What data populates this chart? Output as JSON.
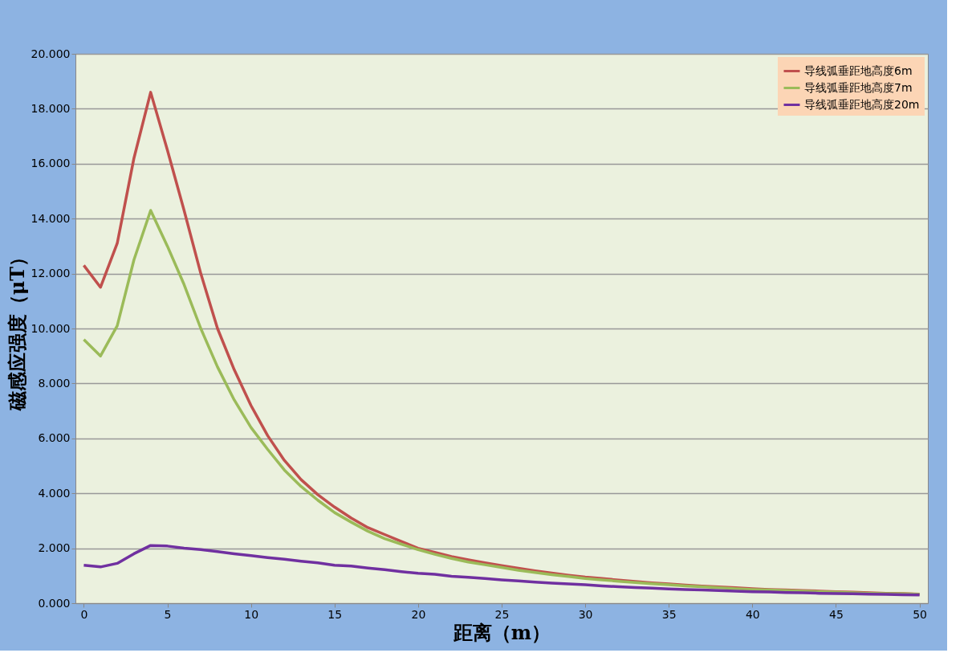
{
  "chart_data": {
    "type": "line",
    "xlabel": "距离（m）",
    "ylabel": "磁感应强度（μT）",
    "x": [
      0,
      1,
      2,
      3,
      4,
      5,
      6,
      7,
      8,
      9,
      10,
      11,
      12,
      13,
      14,
      15,
      16,
      17,
      18,
      19,
      20,
      21,
      22,
      23,
      24,
      25,
      26,
      27,
      28,
      29,
      30,
      31,
      32,
      33,
      34,
      35,
      36,
      37,
      38,
      39,
      40,
      41,
      42,
      43,
      44,
      45,
      46,
      47,
      48,
      49,
      50
    ],
    "series": [
      {
        "name": "导线弧垂距地高度6m",
        "color": "#c0504d",
        "values": [
          12.3,
          11.5,
          13.1,
          16.2,
          18.6,
          16.5,
          14.3,
          12.0,
          10.0,
          8.5,
          7.2,
          6.1,
          5.2,
          4.5,
          3.95,
          3.5,
          3.1,
          2.75,
          2.5,
          2.25,
          2.0,
          1.85,
          1.7,
          1.58,
          1.47,
          1.37,
          1.27,
          1.18,
          1.1,
          1.02,
          0.95,
          0.9,
          0.84,
          0.79,
          0.74,
          0.7,
          0.66,
          0.62,
          0.59,
          0.56,
          0.53,
          0.5,
          0.48,
          0.46,
          0.44,
          0.42,
          0.4,
          0.38,
          0.36,
          0.35,
          0.33
        ]
      },
      {
        "name": "导线弧垂距地高度7m",
        "color": "#9bbb59",
        "values": [
          9.6,
          9.0,
          10.1,
          12.5,
          14.3,
          13.0,
          11.6,
          10.0,
          8.6,
          7.4,
          6.4,
          5.6,
          4.85,
          4.25,
          3.75,
          3.3,
          2.95,
          2.62,
          2.35,
          2.15,
          1.95,
          1.78,
          1.63,
          1.5,
          1.4,
          1.3,
          1.2,
          1.12,
          1.04,
          0.97,
          0.9,
          0.85,
          0.8,
          0.75,
          0.71,
          0.67,
          0.63,
          0.6,
          0.56,
          0.53,
          0.5,
          0.48,
          0.46,
          0.44,
          0.42,
          0.4,
          0.38,
          0.36,
          0.35,
          0.34,
          0.32
        ]
      },
      {
        "name": "导线弧垂距地高度20m",
        "color": "#7030a0",
        "values": [
          1.38,
          1.32,
          1.45,
          1.8,
          2.1,
          2.08,
          2.0,
          1.95,
          1.88,
          1.8,
          1.73,
          1.66,
          1.6,
          1.53,
          1.47,
          1.38,
          1.35,
          1.28,
          1.22,
          1.15,
          1.09,
          1.05,
          0.98,
          0.94,
          0.9,
          0.85,
          0.81,
          0.77,
          0.73,
          0.7,
          0.67,
          0.63,
          0.6,
          0.57,
          0.55,
          0.52,
          0.5,
          0.48,
          0.46,
          0.44,
          0.42,
          0.41,
          0.39,
          0.38,
          0.36,
          0.35,
          0.34,
          0.33,
          0.32,
          0.31,
          0.3
        ]
      }
    ],
    "xlim": [
      -0.5,
      50.5
    ],
    "xticks": [
      0,
      5,
      10,
      15,
      20,
      25,
      30,
      35,
      40,
      45,
      50
    ],
    "ylim": [
      0,
      20
    ],
    "yticks": [
      {
        "value": 0,
        "label": "0.000"
      },
      {
        "value": 2,
        "label": "2.000"
      },
      {
        "value": 4,
        "label": "4.000"
      },
      {
        "value": 6,
        "label": "6.000"
      },
      {
        "value": 8,
        "label": "8.000"
      },
      {
        "value": 10,
        "label": "10.000"
      },
      {
        "value": 12,
        "label": "12.000"
      },
      {
        "value": 14,
        "label": "14.000"
      },
      {
        "value": 16,
        "label": "16.000"
      },
      {
        "value": 18,
        "label": "18.000"
      },
      {
        "value": 20,
        "label": "20.000"
      }
    ],
    "grid": "y",
    "legend": "top right",
    "marker": "none",
    "line_style": "solid"
  }
}
